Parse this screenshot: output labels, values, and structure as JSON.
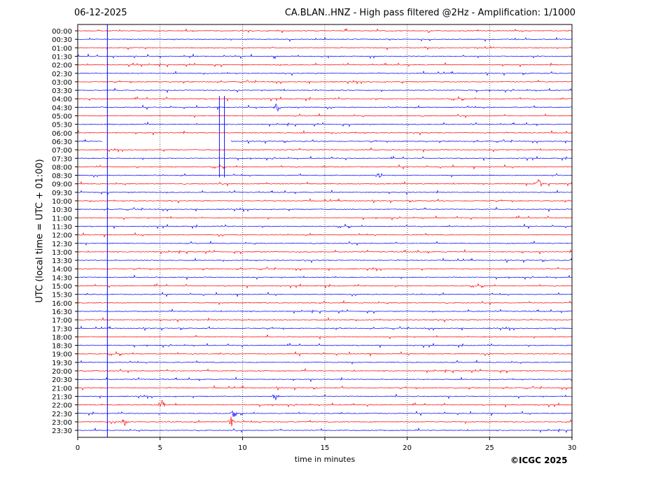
{
  "header": {
    "date": "06-12-2025",
    "title": "CA.BLAN..HNZ - High pass filtered @2Hz - Amplification: 1/1000"
  },
  "credit": "©ICGC 2025",
  "colors": {
    "odd_trace": "#ff0000",
    "even_trace": "#0000ff",
    "axis": "#000000",
    "grid": "#000000"
  },
  "chart_data": {
    "type": "line",
    "subtype": "helicorder",
    "xlabel": "time in minutes",
    "ylabel": "UTC (local time = UTC + 01:00)",
    "xlim": [
      0,
      30
    ],
    "xticks": [
      "0",
      "5",
      "10",
      "15",
      "20",
      "25",
      "30"
    ],
    "vertical_grid_minutes": [
      5,
      10,
      15,
      20,
      25
    ],
    "rows": [
      "00:00",
      "00:30",
      "01:00",
      "01:30",
      "02:00",
      "02:30",
      "03:00",
      "03:30",
      "04:00",
      "04:30",
      "05:00",
      "05:30",
      "06:00",
      "06:30",
      "07:00",
      "07:30",
      "08:00",
      "08:30",
      "09:00",
      "09:30",
      "10:00",
      "10:30",
      "11:00",
      "11:30",
      "12:00",
      "12:30",
      "13:00",
      "13:30",
      "14:00",
      "14:30",
      "15:00",
      "15:30",
      "16:00",
      "16:30",
      "17:00",
      "17:30",
      "18:00",
      "18:30",
      "19:00",
      "19:30",
      "20:00",
      "20:30",
      "21:00",
      "21:30",
      "22:00",
      "22:30",
      "23:00",
      "23:30"
    ],
    "row_colors": [
      "red",
      "blue"
    ],
    "data_gap": {
      "row": "06:30",
      "from_minute": 1.5,
      "to_minute": 9.3
    },
    "continuous_spike_minute": 1.8,
    "calibration_pulse": {
      "from_row": "04:00",
      "to_row": "08:30",
      "minutes": [
        8.6,
        8.9
      ]
    },
    "notable_events": [
      {
        "row": "04:30",
        "minute": 12.1
      },
      {
        "row": "08:30",
        "minute": 18.3
      },
      {
        "row": "09:00",
        "minute": 28.0
      },
      {
        "row": "21:30",
        "minute": 12.0
      },
      {
        "row": "22:00",
        "minute": 5.1
      },
      {
        "row": "22:30",
        "minute": 9.5
      },
      {
        "row": "23:00",
        "minute": 2.8
      },
      {
        "row": "23:00",
        "minute": 9.3
      }
    ]
  }
}
